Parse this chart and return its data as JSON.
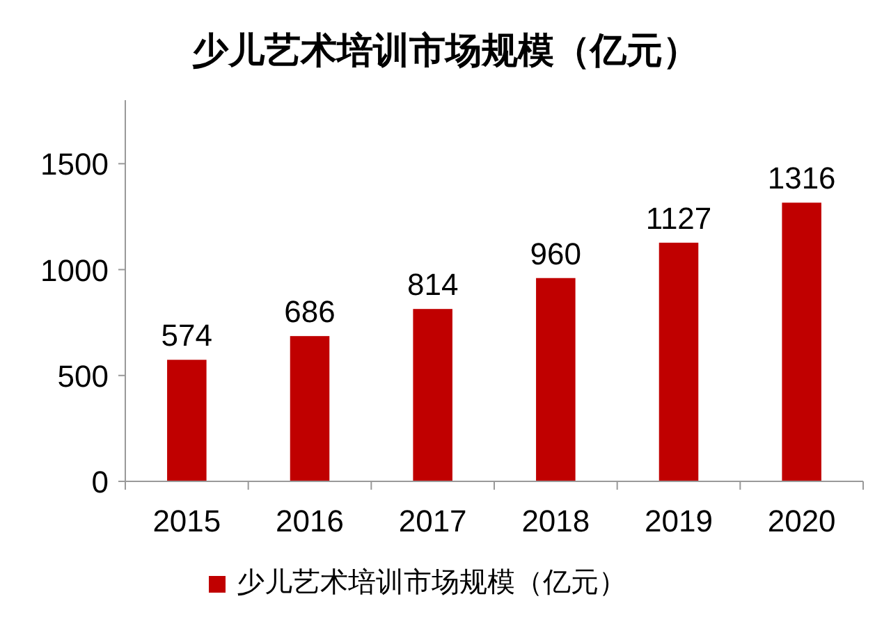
{
  "chart_data": {
    "type": "bar",
    "title": "少儿艺术培训市场规模（亿元）",
    "categories": [
      "2015",
      "2016",
      "2017",
      "2018",
      "2019",
      "2020"
    ],
    "series": [
      {
        "name": "少儿艺术培训市场规模（亿元）",
        "color": "#c00000",
        "values": [
          574,
          686,
          814,
          960,
          1127,
          1316
        ]
      }
    ],
    "ylim": [
      0,
      1800
    ],
    "yticks": [
      0,
      500,
      1000,
      1500
    ],
    "data_labels": true,
    "grid": false,
    "legend": "bottom"
  }
}
